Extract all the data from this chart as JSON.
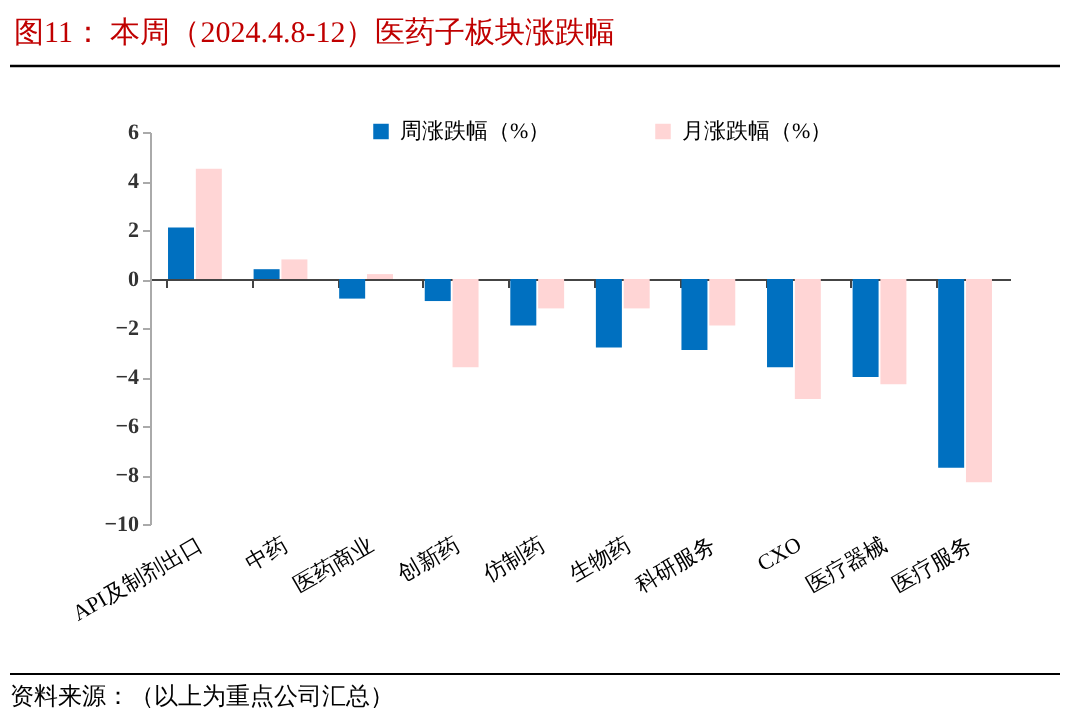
{
  "chart_data": {
    "type": "bar",
    "title": "图11：   本周（2024.4.8-12）医药子板块涨跌幅",
    "categories": [
      "API及制剂出口",
      "中药",
      "医药商业",
      "创新药",
      "仿制药",
      "生物药",
      "科研服务",
      "CXO",
      "医疗器械",
      "医疗服务"
    ],
    "series": [
      {
        "name": "周涨跌幅（%）",
        "color": "#0070c0",
        "values": [
          2.1,
          0.4,
          -0.8,
          -0.9,
          -1.9,
          -2.8,
          -2.9,
          -3.6,
          -4.0,
          -7.7
        ]
      },
      {
        "name": "月涨跌幅（%）",
        "color": "#ffd5d5",
        "values": [
          4.5,
          0.8,
          0.2,
          -3.6,
          -1.2,
          -1.2,
          -1.9,
          -4.9,
          -4.3,
          -8.3
        ]
      }
    ],
    "ylim": [
      -10,
      6
    ],
    "yticks": [
      -10,
      -8,
      -6,
      -4,
      -2,
      0,
      2,
      4,
      6
    ],
    "legend": "top",
    "annotations": [
      "资料来源：（以上为重点公司汇总）"
    ]
  }
}
